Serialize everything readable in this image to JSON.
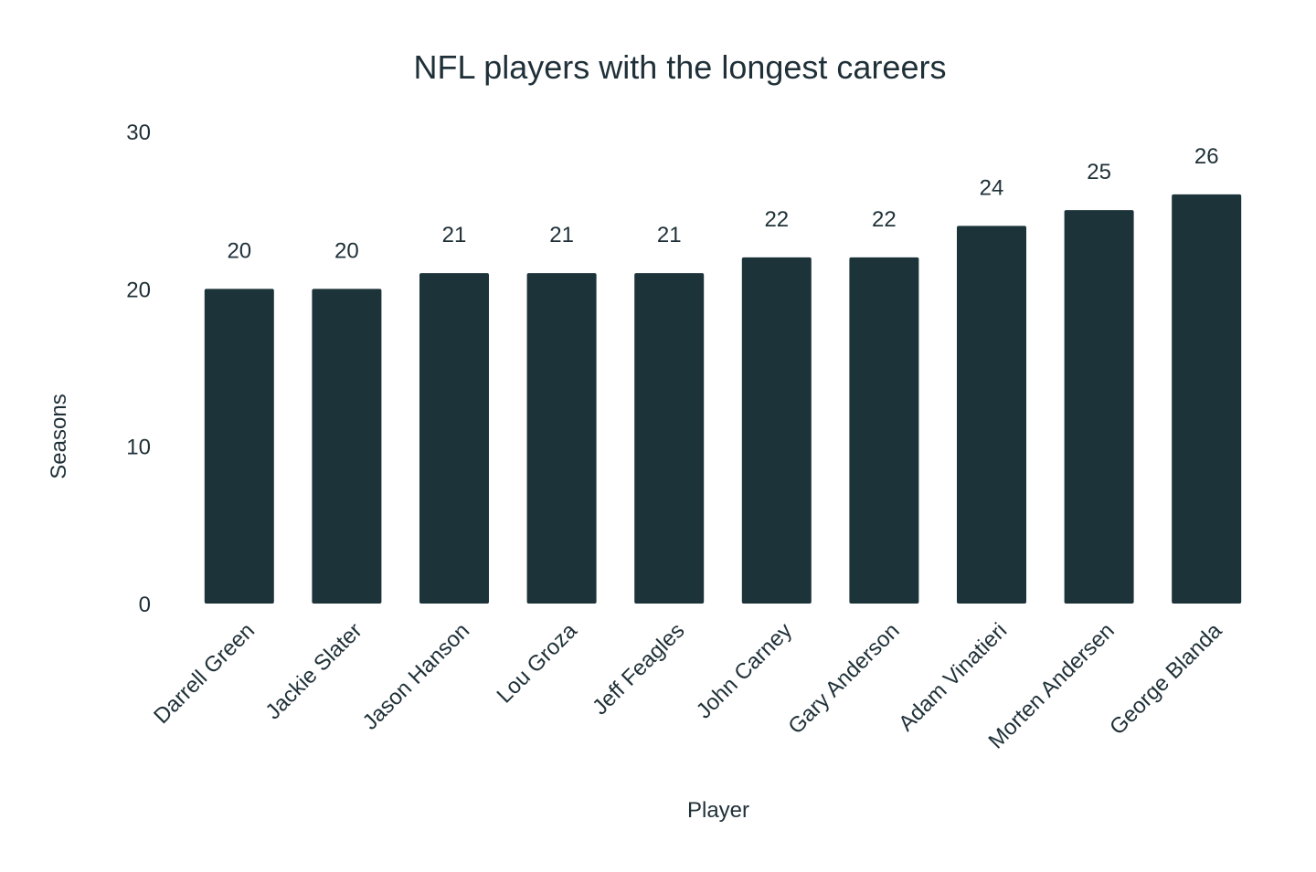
{
  "chart_data": {
    "type": "bar",
    "title": "NFL players with the longest careers",
    "xlabel": "Player",
    "ylabel": "Seasons",
    "categories": [
      "Darrell Green",
      "Jackie Slater",
      "Jason Hanson",
      "Lou Groza",
      "Jeff Feagles",
      "John Carney",
      "Gary Anderson",
      "Adam Vinatieri",
      "Morten Andersen",
      "George Blanda"
    ],
    "values": [
      20,
      20,
      21,
      21,
      21,
      22,
      22,
      24,
      25,
      26
    ],
    "ylim": [
      0,
      30
    ],
    "yticks": [
      0,
      10,
      20,
      30
    ],
    "grid": false,
    "data_labels": true,
    "bar_color": "#1c333a",
    "text_color": "#1f3038"
  }
}
